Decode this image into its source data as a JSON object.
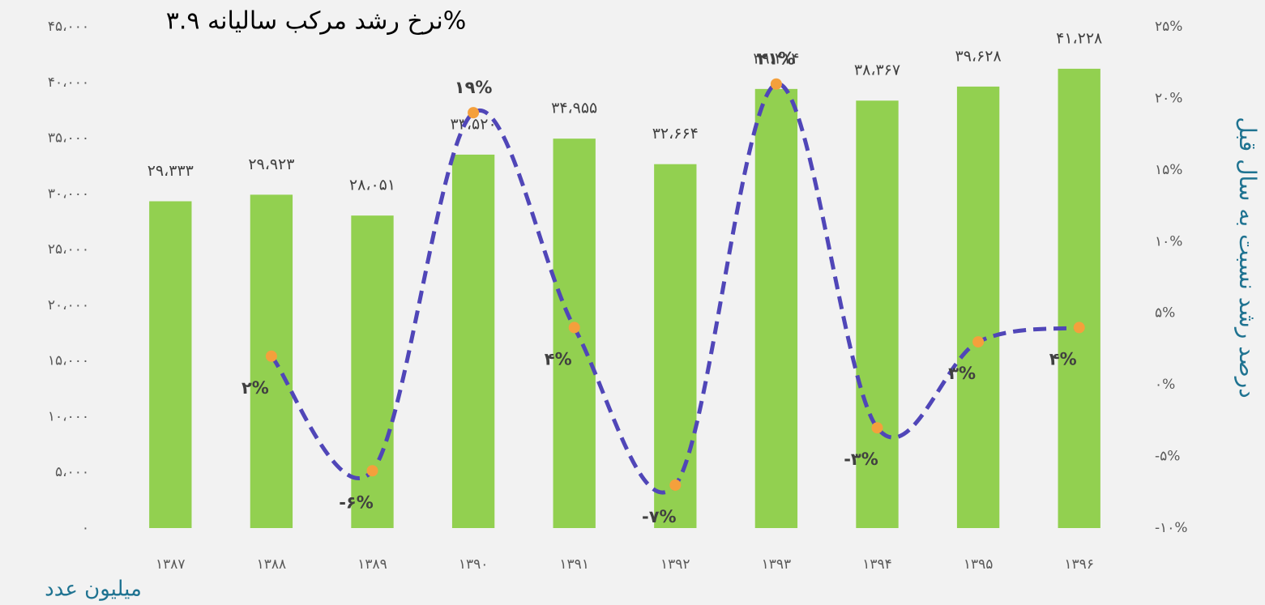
{
  "chart_data": {
    "type": "bar",
    "title": "نرخ رشد مرکب سالیانه ۳.۹%",
    "y_label": "میلیون عدد",
    "y2_label": "درصد رشد نسبت به سال قبل",
    "categories": [
      "۱۳۸۷",
      "۱۳۸۸",
      "۱۳۸۹",
      "۱۳۹۰",
      "۱۳۹۱",
      "۱۳۹۲",
      "۱۳۹۳",
      "۱۳۹۴",
      "۱۳۹۵",
      "۱۳۹۶"
    ],
    "series": [
      {
        "type": "bar",
        "color": "#92d050",
        "values": [
          29333,
          29923,
          28051,
          33520,
          34955,
          32664,
          39414,
          38367,
          39628,
          41228
        ],
        "value_labels": [
          "۲۹،۳۳۳",
          "۲۹،۹۲۳",
          "۲۸،۰۵۱",
          "۳۳،۵۲۰",
          "۳۴،۹۵۵",
          "۳۲،۶۶۴",
          "۳۹،۴۱۴",
          "۳۸،۳۶۷",
          "۳۹،۶۲۸",
          "۴۱،۲۲۸"
        ]
      },
      {
        "type": "line",
        "axis": "y2",
        "color": "#5046b8",
        "marker_color": "#f4a03c",
        "values": [
          null,
          2,
          -6,
          19,
          4,
          -7,
          21,
          -3,
          3,
          4
        ],
        "value_labels": [
          null,
          "۲%",
          "-۶%",
          "۱۹%",
          "۴%",
          "-۷%",
          "۲۱%",
          "-۳%",
          "۳%",
          "۴%"
        ]
      }
    ],
    "ylim": [
      0,
      45000
    ],
    "yticks": [
      {
        "value": 0,
        "label": "۰"
      },
      {
        "value": 5000,
        "label": "۵،۰۰۰"
      },
      {
        "value": 10000,
        "label": "۱۰،۰۰۰"
      },
      {
        "value": 15000,
        "label": "۱۵،۰۰۰"
      },
      {
        "value": 20000,
        "label": "۲۰،۰۰۰"
      },
      {
        "value": 25000,
        "label": "۲۵،۰۰۰"
      },
      {
        "value": 30000,
        "label": "۳۰،۰۰۰"
      },
      {
        "value": 35000,
        "label": "۳۵،۰۰۰"
      },
      {
        "value": 40000,
        "label": "۴۰،۰۰۰"
      },
      {
        "value": 45000,
        "label": "۴۵،۰۰۰"
      }
    ],
    "y2lim": [
      -10,
      25
    ],
    "y2ticks": [
      {
        "value": -10,
        "label": "-۱۰%"
      },
      {
        "value": -5,
        "label": "-۵%"
      },
      {
        "value": 0,
        "label": "۰%"
      },
      {
        "value": 5,
        "label": "۵%"
      },
      {
        "value": 10,
        "label": "۱۰%"
      },
      {
        "value": 15,
        "label": "۱۵%"
      },
      {
        "value": 20,
        "label": "۲۰%"
      },
      {
        "value": 25,
        "label": "۲۵%"
      }
    ]
  }
}
